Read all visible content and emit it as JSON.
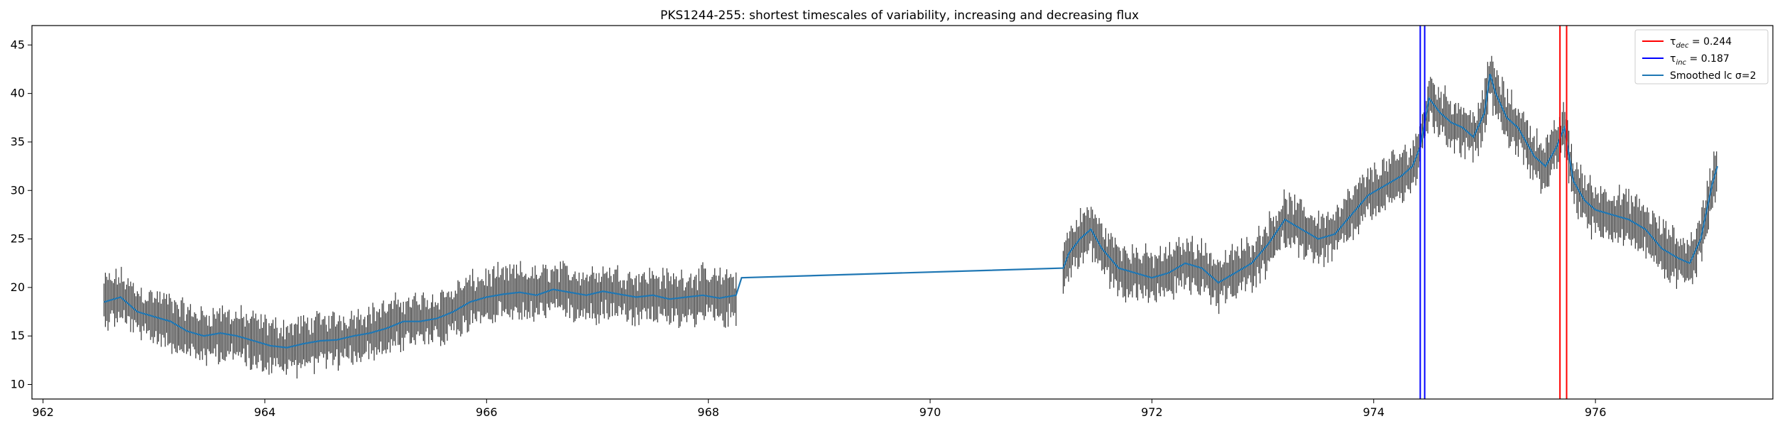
{
  "chart_data": {
    "type": "line",
    "title": "PKS1244-255: shortest timescales of variability, increasing and decreasing flux",
    "xlabel": "",
    "ylabel": "",
    "xlim": [
      961.9,
      977.6
    ],
    "ylim": [
      8.5,
      47.0
    ],
    "xticks": [
      962,
      964,
      966,
      968,
      970,
      972,
      974,
      976
    ],
    "yticks": [
      10,
      15,
      20,
      25,
      30,
      35,
      40,
      45
    ],
    "grid": false,
    "legend_position": "top-right",
    "legend": [
      {
        "label": "τ",
        "sub": "dec",
        "suffix": " = 0.244",
        "color": "#ff0000"
      },
      {
        "label": "τ",
        "sub": "inc",
        "suffix": " = 0.187",
        "color": "#0000ff"
      },
      {
        "label": "Smoothed lc σ=2",
        "color": "#1f77b4"
      }
    ],
    "vlines": [
      {
        "x": 974.42,
        "color": "#0000ff"
      },
      {
        "x": 974.46,
        "color": "#0000ff"
      },
      {
        "x": 975.68,
        "color": "#ff0000"
      },
      {
        "x": 975.74,
        "color": "#ff0000"
      }
    ],
    "segments": [
      {
        "x": [
          962.55,
          962.7,
          962.85,
          963.0,
          963.15,
          963.3,
          963.45,
          963.6,
          963.75,
          963.9,
          964.05,
          964.2,
          964.35,
          964.5,
          964.65,
          964.8,
          964.95,
          965.1,
          965.25,
          965.4,
          965.55,
          965.7,
          965.85,
          966.0,
          966.15,
          966.3,
          966.45,
          966.6,
          966.75,
          966.9,
          967.05,
          967.2,
          967.35,
          967.5,
          967.65,
          967.8,
          967.95,
          968.1,
          968.25
        ],
        "y": [
          18.5,
          19.0,
          17.5,
          17.0,
          16.5,
          15.5,
          15.0,
          15.3,
          15.0,
          14.5,
          14.0,
          13.8,
          14.2,
          14.5,
          14.6,
          15.0,
          15.3,
          15.8,
          16.5,
          16.5,
          16.8,
          17.5,
          18.5,
          19.0,
          19.3,
          19.5,
          19.2,
          19.8,
          19.5,
          19.2,
          19.6,
          19.3,
          19.0,
          19.2,
          18.8,
          19.0,
          19.2,
          18.9,
          19.2
        ]
      },
      {
        "x": [
          968.3,
          971.2,
          971.25,
          971.35,
          971.45,
          971.55,
          971.7,
          971.85,
          972.0,
          972.15,
          972.3,
          972.45,
          972.6,
          972.75,
          972.9,
          973.05,
          973.2,
          973.35,
          973.5,
          973.65,
          973.8,
          973.95,
          974.1,
          974.25,
          974.35,
          974.42,
          974.5,
          974.6,
          974.7,
          974.8,
          974.9,
          975.0,
          975.05,
          975.1,
          975.2,
          975.3,
          975.45,
          975.55,
          975.65,
          975.72,
          975.8,
          975.9,
          976.0,
          976.15,
          976.3,
          976.45,
          976.6,
          976.75,
          976.85,
          976.95,
          977.05,
          977.1
        ],
        "y": [
          21.0,
          22.0,
          23.5,
          25.0,
          26.0,
          24.0,
          22.0,
          21.5,
          21.0,
          21.5,
          22.5,
          22.0,
          20.5,
          21.5,
          22.5,
          24.5,
          27.0,
          26.0,
          25.0,
          25.5,
          27.5,
          29.5,
          30.5,
          31.5,
          32.5,
          34.5,
          39.5,
          38.0,
          37.0,
          36.5,
          35.5,
          38.0,
          42.0,
          40.0,
          37.5,
          36.5,
          33.5,
          32.5,
          34.5,
          36.5,
          31.0,
          29.0,
          28.0,
          27.5,
          27.0,
          26.0,
          24.0,
          23.0,
          22.5,
          25.0,
          30.5,
          32.5
        ]
      }
    ],
    "errorbar": {
      "amplitude": 2.0,
      "step": 0.012,
      "color": "#333333"
    }
  }
}
